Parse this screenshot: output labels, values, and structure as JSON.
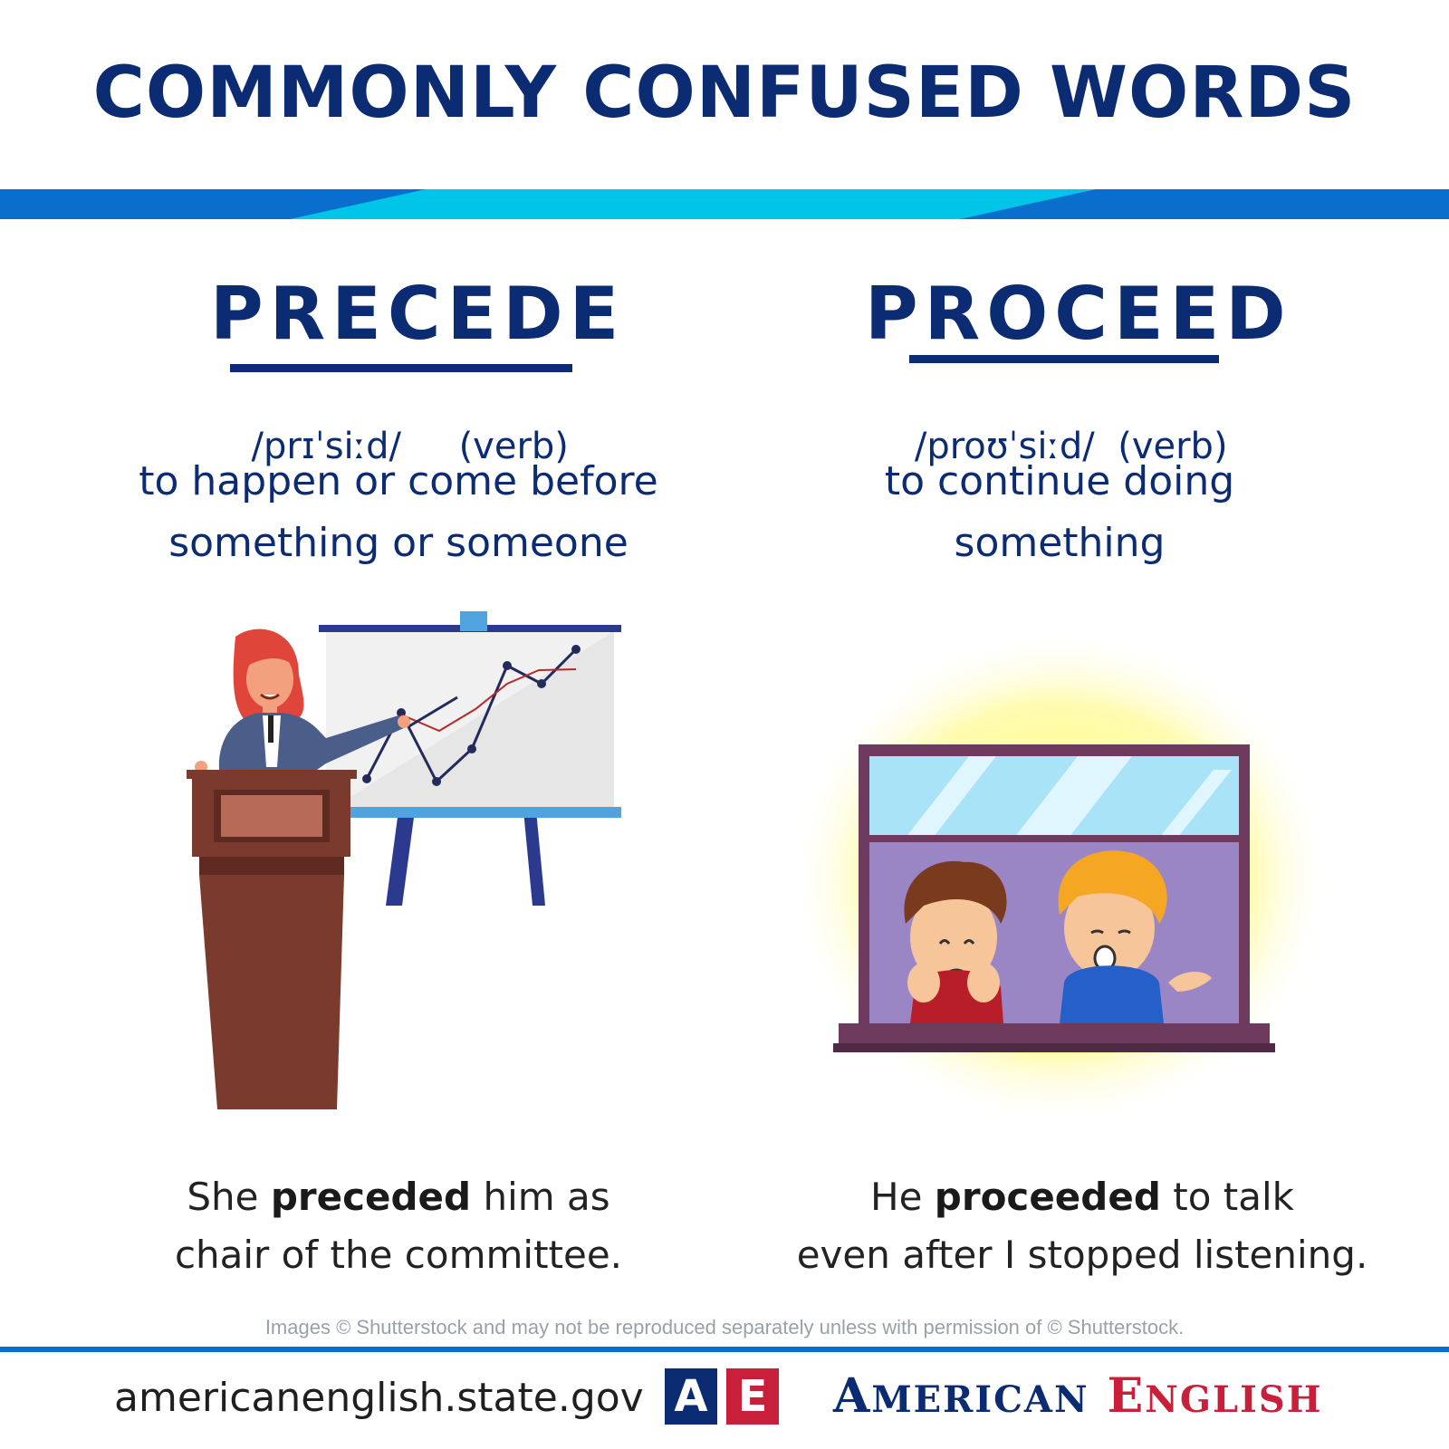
{
  "title": "COMMONLY CONFUSED WORDS",
  "colors": {
    "navy": "#0b2b72",
    "stripe_blue": "#0a6fcc",
    "stripe_cyan": "#00c4e8",
    "red": "#c8203a"
  },
  "left": {
    "word": "PRECEDE",
    "pronunciation": "/prɪˈsiːd/",
    "part_of_speech": "(verb)",
    "definition_line1": "to happen or come before",
    "definition_line2": "something or someone",
    "example_pre": "She ",
    "example_bold": "preceded",
    "example_post": " him as",
    "example_line2": "chair of the committee.",
    "illustration": "woman-presenting-at-podium"
  },
  "right": {
    "word": "PROCEED",
    "pronunciation": "/proʊˈsiːd/",
    "part_of_speech": "(verb)",
    "definition_line1": "to continue doing",
    "definition_line2": "something",
    "example_pre": "He ",
    "example_bold": "proceeded",
    "example_post": " to talk",
    "example_line2": "even after I stopped listening.",
    "illustration": "two-boys-at-window"
  },
  "footer": {
    "copyright": "Images © Shutterstock and may not be reproduced separately unless with permission of © Shutterstock.",
    "site": "americanenglish.state.gov",
    "logo_a": "A",
    "logo_e": "E",
    "brand_a_initial": "A",
    "brand_a_rest": "MERICAN",
    "brand_e_initial": "E",
    "brand_e_rest": "NGLISH"
  }
}
